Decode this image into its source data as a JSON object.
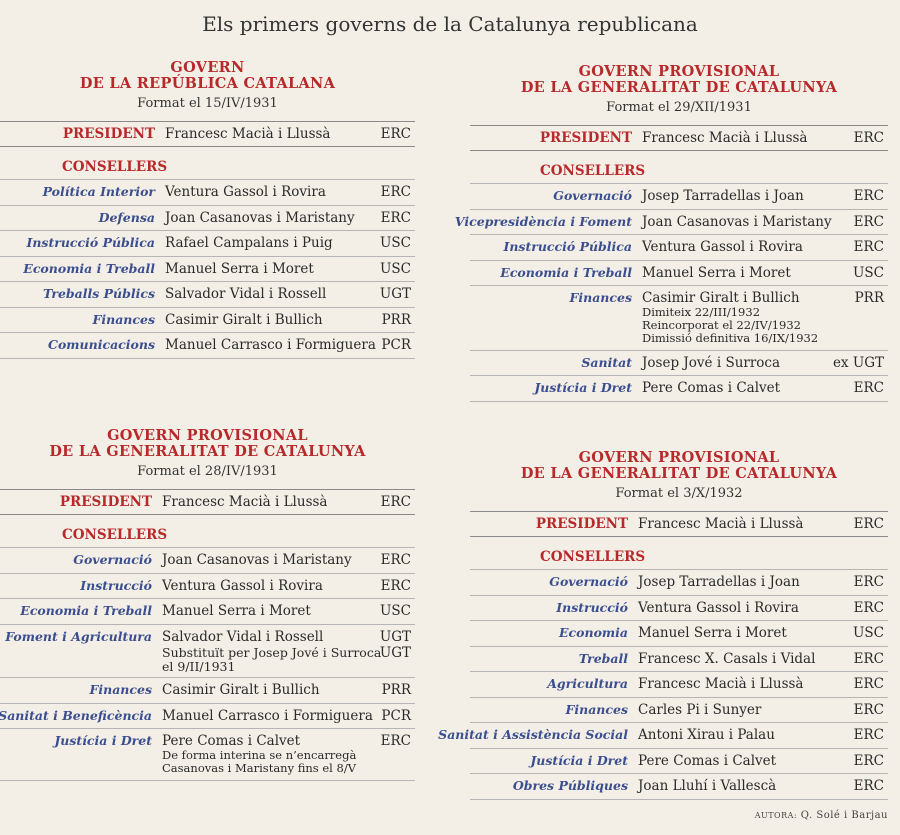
{
  "title": "Els primers governs de la Catalunya republicana",
  "author_label": "AUTORA:",
  "author_name": "Q. Solé i Barjau",
  "labels": {
    "president": "PRESIDENT",
    "consellers": "CONSELLERS"
  },
  "panels": [
    {
      "title1": "GOVERN",
      "title2": "DE LA REPÚBLICA CATALANA",
      "date": "Format el 15/IV/1931",
      "president": {
        "name": "Francesc Macià i Llussà",
        "party": "ERC"
      },
      "members": [
        {
          "role": "Política Interior",
          "name": "Ventura Gassol i Rovira",
          "party": "ERC"
        },
        {
          "role": "Defensa",
          "name": "Joan Casanovas i Maristany",
          "party": "ERC"
        },
        {
          "role": "Instrucció Pública",
          "name": "Rafael Campalans i Puig",
          "party": "USC"
        },
        {
          "role": "Economia i Treball",
          "name": "Manuel Serra i Moret",
          "party": "USC"
        },
        {
          "role": "Treballs Públics",
          "name": "Salvador Vidal i Rossell",
          "party": "UGT"
        },
        {
          "role": "Finances",
          "name": "Casimir Giralt i Bullich",
          "party": "PRR"
        },
        {
          "role": "Comunicacions",
          "name": "Manuel Carrasco i Formiguera",
          "party": "PCR"
        }
      ]
    },
    {
      "title1": "GOVERN PROVISIONAL",
      "title2": "DE LA GENERALITAT DE CATALUNYA",
      "date": "Format el 29/XII/1931",
      "president": {
        "name": "Francesc Macià i Llussà",
        "party": "ERC"
      },
      "members": [
        {
          "role": "Governació",
          "name": "Josep Tarradellas i Joan",
          "party": "ERC"
        },
        {
          "role": "Vicepresidència i Foment",
          "name": "Joan Casanovas i Maristany",
          "party": "ERC"
        },
        {
          "role": "Instrucció Pública",
          "name": "Ventura Gassol i Rovira",
          "party": "ERC"
        },
        {
          "role": "Economia i Treball",
          "name": "Manuel Serra i Moret",
          "party": "USC"
        },
        {
          "role": "Finances",
          "name": "Casimir Giralt i Bullich",
          "party": "PRR",
          "notes": [
            "Dimiteix 22/III/1932",
            "Reincorporat el 22/IV/1932",
            "Dimissió definitiva 16/IX/1932"
          ]
        },
        {
          "role": "Sanitat",
          "name": "Josep Jové i Surroca",
          "party": "ex UGT"
        },
        {
          "role": "Justícia i Dret",
          "name": "Pere Comas i Calvet",
          "party": "ERC"
        }
      ]
    },
    {
      "title1": "GOVERN PROVISIONAL",
      "title2": "DE LA GENERALITAT DE CATALUNYA",
      "date": "Format el 28/IV/1931",
      "president": {
        "name": "Francesc Macià i Llussà",
        "party": "ERC"
      },
      "members": [
        {
          "role": "Governació",
          "name": "Joan Casanovas i Maristany",
          "party": "ERC"
        },
        {
          "role": "Instrucció",
          "name": "Ventura Gassol i Rovira",
          "party": "ERC"
        },
        {
          "role": "Economia i Treball",
          "name": "Manuel Serra i Moret",
          "party": "USC"
        },
        {
          "role": "Foment i Agricultura",
          "name": "Salvador Vidal i Rossell",
          "party": "UGT",
          "sub": "Substituït per Josep Jové i Surroca",
          "sub_party": "UGT",
          "sub2": "el 9/II/1931"
        },
        {
          "role": "Finances",
          "name": "Casimir Giralt i Bullich",
          "party": "PRR"
        },
        {
          "role": "Sanitat i Beneficència",
          "name": "Manuel Carrasco i Formiguera",
          "party": "PCR"
        },
        {
          "role": "Justícia i Dret",
          "name": "Pere Comas i Calvet",
          "party": "ERC",
          "notes": [
            "De forma interina se n’encarregà",
            "Casanovas i Maristany fins el 8/V"
          ]
        }
      ]
    },
    {
      "title1": "GOVERN PROVISIONAL",
      "title2": "DE LA GENERALITAT DE CATALUNYA",
      "date": "Format el 3/X/1932",
      "president": {
        "name": "Francesc Macià i Llussà",
        "party": "ERC"
      },
      "members": [
        {
          "role": "Governació",
          "name": "Josep Tarradellas i Joan",
          "party": "ERC"
        },
        {
          "role": "Instrucció",
          "name": "Ventura Gassol i Rovira",
          "party": "ERC"
        },
        {
          "role": "Economia",
          "name": "Manuel Serra i Moret",
          "party": "USC"
        },
        {
          "role": "Treball",
          "name": "Francesc X. Casals i Vidal",
          "party": "ERC"
        },
        {
          "role": "Agricultura",
          "name": "Francesc Macià i Llussà",
          "party": "ERC"
        },
        {
          "role": "Finances",
          "name": "Carles Pi i Sunyer",
          "party": "ERC"
        },
        {
          "role": "Sanitat i Assistència Social",
          "name": "Antoni Xirau i Palau",
          "party": "ERC"
        },
        {
          "role": "Justícia i Dret",
          "name": "Pere Comas i Calvet",
          "party": "ERC"
        },
        {
          "role": "Obres Públiques",
          "name": "Joan Lluhí i Vallescà",
          "party": "ERC"
        }
      ]
    }
  ]
}
